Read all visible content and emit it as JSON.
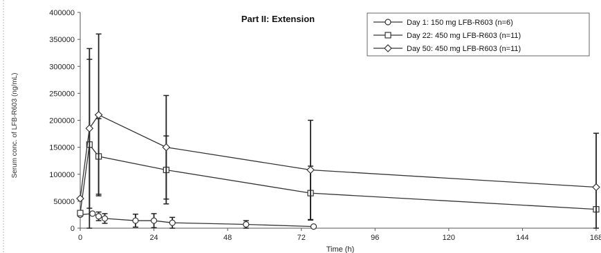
{
  "chart_data": {
    "type": "line",
    "title": "Part II: Extension",
    "xlabel": "Time (h)",
    "ylabel": "Serum conc. of LFB-R603 (ng/mL)",
    "xlim": [
      0,
      168
    ],
    "ylim": [
      0,
      400000
    ],
    "xticks": [
      "0",
      "24",
      "48",
      "72",
      "96",
      "120",
      "144",
      "168"
    ],
    "yticks": [
      "0",
      "50000",
      "100000",
      "150000",
      "200000",
      "250000",
      "300000",
      "350000",
      "400000"
    ],
    "legend_position": "top-right",
    "series": [
      {
        "name": "Day 1: 150 mg LFB-R603 (n=6)",
        "marker": "circle",
        "x": [
          0,
          4,
          6,
          8,
          18,
          24,
          30,
          54,
          76
        ],
        "y": [
          25000,
          27000,
          22000,
          18000,
          14000,
          14000,
          10000,
          7000,
          3000
        ],
        "err": [
          0,
          0,
          8000,
          9000,
          12000,
          13000,
          10000,
          7000,
          2000
        ]
      },
      {
        "name": "Day 22: 450 mg LFB-R603 (n=11)",
        "marker": "square",
        "x": [
          0,
          3,
          6,
          28,
          75,
          168
        ],
        "y": [
          28000,
          155000,
          133000,
          108000,
          65000,
          35000
        ],
        "err": [
          0,
          158000,
          70000,
          63000,
          50000,
          0
        ]
      },
      {
        "name": "Day 50: 450 mg LFB-R603 (n=11)",
        "marker": "diamond",
        "x": [
          0,
          3,
          6,
          28,
          75,
          168
        ],
        "y": [
          55000,
          185000,
          210000,
          150000,
          108000,
          76000
        ],
        "err": [
          0,
          148000,
          150000,
          96000,
          92000,
          100000
        ]
      }
    ]
  }
}
